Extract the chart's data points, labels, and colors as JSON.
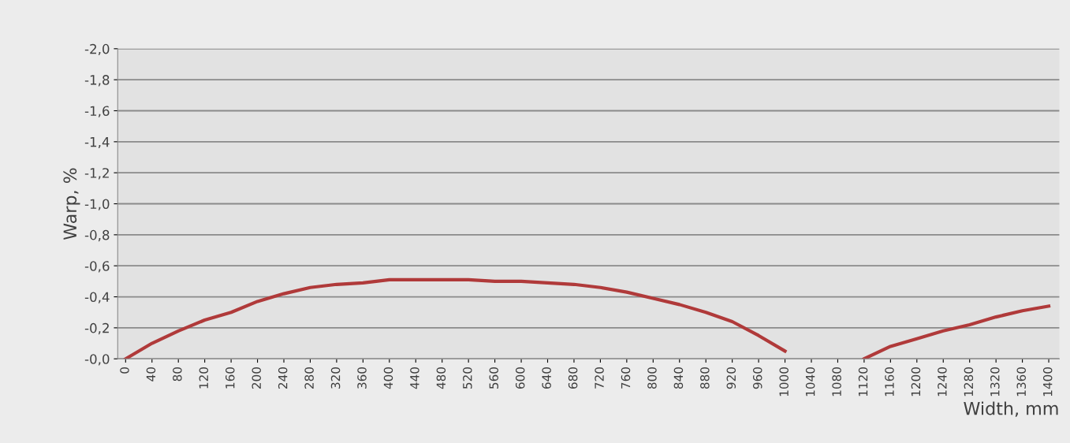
{
  "chart_data": {
    "type": "line",
    "xlabel": "Width, mm",
    "ylabel": "Warp, %",
    "categories": [
      "0",
      "40",
      "80",
      "120",
      "160",
      "200",
      "240",
      "280",
      "320",
      "360",
      "400",
      "440",
      "480",
      "520",
      "560",
      "600",
      "640",
      "680",
      "720",
      "760",
      "800",
      "840",
      "880",
      "920",
      "960",
      "1000",
      "1040",
      "1080",
      "1120",
      "1160",
      "1200",
      "1240",
      "1280",
      "1320",
      "1360",
      "1400"
    ],
    "series": [
      {
        "color": "#b03a3a",
        "values": [
          0,
          -0.1,
          -0.18,
          -0.25,
          -0.3,
          -0.37,
          -0.42,
          -0.46,
          -0.48,
          -0.49,
          -0.51,
          -0.51,
          -0.51,
          -0.51,
          -0.5,
          -0.5,
          -0.49,
          -0.48,
          -0.46,
          -0.43,
          -0.39,
          -0.35,
          -0.3,
          -0.24,
          -0.15,
          -0.05,
          null,
          null,
          0,
          -0.08,
          -0.13,
          -0.18,
          -0.22,
          -0.27,
          -0.31,
          -0.34
        ]
      }
    ],
    "ylim": [
      0,
      -2.0
    ],
    "yticks": [
      {
        "value": 0,
        "label": "-0,0"
      },
      {
        "value": -0.2,
        "label": "-0,2"
      },
      {
        "value": -0.4,
        "label": "-0,4"
      },
      {
        "value": -0.6,
        "label": "-0,6"
      },
      {
        "value": -0.8,
        "label": "-0,8"
      },
      {
        "value": -1.0,
        "label": "-1,0"
      },
      {
        "value": -1.2,
        "label": "-1,2"
      },
      {
        "value": -1.4,
        "label": "-1,4"
      },
      {
        "value": -1.6,
        "label": "-1,6"
      },
      {
        "value": -1.8,
        "label": "-1,8"
      },
      {
        "value": -2.0,
        "label": "-2,0"
      }
    ],
    "grid": "y",
    "legend": false,
    "marker": "none",
    "line_style": "solid"
  }
}
